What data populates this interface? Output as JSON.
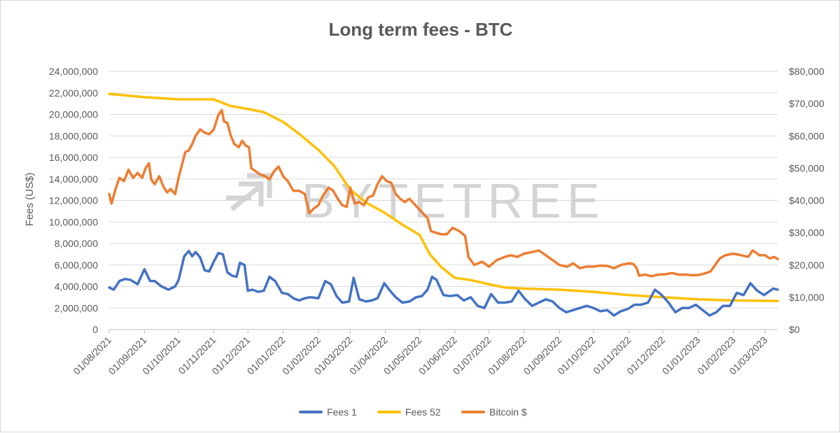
{
  "watermark": "BYTETREE",
  "chart_data": {
    "type": "line",
    "title": "Long term fees - BTC",
    "ylabel": "Fees (US$)",
    "y2label": "",
    "ylim": [
      0,
      24000000
    ],
    "y2lim": [
      0,
      80000
    ],
    "yticks": [
      "0",
      "2,000,000",
      "4,000,000",
      "6,000,000",
      "8,000,000",
      "10,000,000",
      "12,000,000",
      "14,000,000",
      "16,000,000",
      "18,000,000",
      "20,000,000",
      "22,000,000",
      "24,000,000"
    ],
    "y2ticks": [
      "$0",
      "$10,000",
      "$20,000",
      "$30,000",
      "$40,000",
      "$50,000",
      "$60,000",
      "$70,000",
      "$80,000"
    ],
    "xticks": [
      "01/08/2021",
      "01/09/2021",
      "01/10/2021",
      "01/11/2021",
      "01/12/2021",
      "01/01/2022",
      "01/02/2022",
      "01/03/2022",
      "01/04/2022",
      "01/05/2022",
      "01/06/2022",
      "01/07/2022",
      "01/08/2022",
      "01/09/2022",
      "01/10/2022",
      "01/11/2022",
      "01/12/2022",
      "01/01/2023",
      "01/02/2023",
      "01/03/2023"
    ],
    "x_start": "2021-08-01",
    "x_end": "2023-03-12",
    "grid": true,
    "legend_position": "bottom",
    "series": [
      {
        "name": "Fees 1",
        "axis": "left",
        "color": "#4472C4",
        "x": [
          "2021-08-01",
          "2021-08-05",
          "2021-08-10",
          "2021-08-15",
          "2021-08-20",
          "2021-08-26",
          "2021-09-01",
          "2021-09-06",
          "2021-09-10",
          "2021-09-16",
          "2021-09-22",
          "2021-09-28",
          "2021-10-01",
          "2021-10-06",
          "2021-10-10",
          "2021-10-13",
          "2021-10-16",
          "2021-10-20",
          "2021-10-24",
          "2021-10-28",
          "2021-11-01",
          "2021-11-05",
          "2021-11-09",
          "2021-11-13",
          "2021-11-17",
          "2021-11-21",
          "2021-11-24",
          "2021-11-28",
          "2021-12-01",
          "2021-12-05",
          "2021-12-10",
          "2021-12-15",
          "2021-12-20",
          "2021-12-25",
          "2021-12-31",
          "2022-01-05",
          "2022-01-10",
          "2022-01-15",
          "2022-01-20",
          "2022-01-25",
          "2022-02-01",
          "2022-02-07",
          "2022-02-12",
          "2022-02-17",
          "2022-02-22",
          "2022-02-28",
          "2022-03-04",
          "2022-03-09",
          "2022-03-15",
          "2022-03-20",
          "2022-03-25",
          "2022-03-31",
          "2022-04-05",
          "2022-04-10",
          "2022-04-16",
          "2022-04-22",
          "2022-04-28",
          "2022-05-03",
          "2022-05-08",
          "2022-05-12",
          "2022-05-16",
          "2022-05-22",
          "2022-05-28",
          "2022-06-03",
          "2022-06-09",
          "2022-06-15",
          "2022-06-21",
          "2022-06-27",
          "2022-07-03",
          "2022-07-09",
          "2022-07-15",
          "2022-07-21",
          "2022-07-27",
          "2022-08-02",
          "2022-08-08",
          "2022-08-14",
          "2022-08-20",
          "2022-08-26",
          "2022-09-01",
          "2022-09-07",
          "2022-09-13",
          "2022-09-19",
          "2022-09-25",
          "2022-10-01",
          "2022-10-07",
          "2022-10-13",
          "2022-10-19",
          "2022-10-25",
          "2022-10-31",
          "2022-11-06",
          "2022-11-12",
          "2022-11-18",
          "2022-11-24",
          "2022-11-30",
          "2022-12-06",
          "2022-12-12",
          "2022-12-18",
          "2022-12-24",
          "2022-12-30",
          "2023-01-05",
          "2023-01-11",
          "2023-01-17",
          "2023-01-23",
          "2023-01-29",
          "2023-02-04",
          "2023-02-10",
          "2023-02-16",
          "2023-02-22",
          "2023-02-28",
          "2023-03-04",
          "2023-03-08",
          "2023-03-12"
        ],
        "values": [
          3900000,
          3700000,
          4500000,
          4700000,
          4600000,
          4200000,
          5600000,
          4500000,
          4500000,
          4000000,
          3700000,
          4000000,
          4600000,
          6800000,
          7300000,
          6800000,
          7200000,
          6700000,
          5500000,
          5400000,
          6300000,
          7100000,
          7000000,
          5300000,
          5000000,
          4900000,
          6200000,
          6000000,
          3600000,
          3700000,
          3500000,
          3600000,
          4900000,
          4500000,
          3400000,
          3300000,
          2900000,
          2700000,
          2900000,
          3000000,
          2900000,
          4500000,
          4200000,
          3100000,
          2500000,
          2600000,
          4800000,
          2800000,
          2600000,
          2700000,
          2900000,
          4300000,
          3600000,
          3000000,
          2500000,
          2600000,
          3000000,
          3100000,
          3700000,
          4900000,
          4600000,
          3200000,
          3100000,
          3200000,
          2700000,
          3000000,
          2200000,
          2000000,
          3300000,
          2500000,
          2500000,
          2600000,
          3600000,
          2800000,
          2200000,
          2500000,
          2800000,
          2600000,
          2000000,
          1600000,
          1800000,
          2000000,
          2200000,
          2000000,
          1700000,
          1800000,
          1300000,
          1700000,
          1900000,
          2300000,
          2300000,
          2500000,
          3700000,
          3200000,
          2500000,
          1600000,
          2000000,
          2000000,
          2300000,
          1800000,
          1300000,
          1600000,
          2200000,
          2200000,
          3400000,
          3200000,
          4300000,
          3600000,
          3200000,
          3500000,
          3800000,
          3700000
        ]
      },
      {
        "name": "Fees 52",
        "axis": "left",
        "color": "#FFC000",
        "x": [
          "2021-08-01",
          "2021-09-01",
          "2021-10-01",
          "2021-11-01",
          "2021-11-15",
          "2021-12-01",
          "2021-12-15",
          "2022-01-01",
          "2022-01-15",
          "2022-02-01",
          "2022-02-15",
          "2022-03-01",
          "2022-03-15",
          "2022-04-01",
          "2022-04-15",
          "2022-05-01",
          "2022-05-10",
          "2022-05-20",
          "2022-06-01",
          "2022-06-15",
          "2022-07-01",
          "2022-07-15",
          "2022-08-01",
          "2022-09-01",
          "2022-10-01",
          "2022-11-01",
          "2022-12-01",
          "2023-01-01",
          "2023-02-01",
          "2023-03-12"
        ],
        "values": [
          21900000,
          21600000,
          21400000,
          21400000,
          20800000,
          20500000,
          20200000,
          19300000,
          18200000,
          16700000,
          15200000,
          13000000,
          11800000,
          10800000,
          9800000,
          8800000,
          7000000,
          5800000,
          4800000,
          4600000,
          4200000,
          3900000,
          3800000,
          3700000,
          3500000,
          3200000,
          3000000,
          2800000,
          2700000,
          2650000
        ]
      },
      {
        "name": "Bitcoin $",
        "axis": "right",
        "color": "#ED7D31",
        "x": [
          "2021-08-01",
          "2021-08-03",
          "2021-08-07",
          "2021-08-10",
          "2021-08-14",
          "2021-08-18",
          "2021-08-22",
          "2021-08-26",
          "2021-08-30",
          "2021-09-02",
          "2021-09-05",
          "2021-09-07",
          "2021-09-10",
          "2021-09-14",
          "2021-09-18",
          "2021-09-21",
          "2021-09-24",
          "2021-09-28",
          "2021-10-01",
          "2021-10-04",
          "2021-10-07",
          "2021-10-10",
          "2021-10-13",
          "2021-10-16",
          "2021-10-20",
          "2021-10-24",
          "2021-10-28",
          "2021-11-01",
          "2021-11-05",
          "2021-11-08",
          "2021-11-10",
          "2021-11-13",
          "2021-11-16",
          "2021-11-19",
          "2021-11-23",
          "2021-11-26",
          "2021-11-29",
          "2021-12-02",
          "2021-12-04",
          "2021-12-08",
          "2021-12-12",
          "2021-12-16",
          "2021-12-20",
          "2021-12-24",
          "2021-12-28",
          "2022-01-01",
          "2022-01-05",
          "2022-01-10",
          "2022-01-15",
          "2022-01-20",
          "2022-01-24",
          "2022-01-28",
          "2022-02-01",
          "2022-02-05",
          "2022-02-10",
          "2022-02-14",
          "2022-02-18",
          "2022-02-22",
          "2022-02-26",
          "2022-03-01",
          "2022-03-05",
          "2022-03-09",
          "2022-03-13",
          "2022-03-17",
          "2022-03-21",
          "2022-03-25",
          "2022-03-29",
          "2022-04-02",
          "2022-04-06",
          "2022-04-10",
          "2022-04-14",
          "2022-04-18",
          "2022-04-22",
          "2022-04-26",
          "2022-04-30",
          "2022-05-04",
          "2022-05-08",
          "2022-05-11",
          "2022-05-15",
          "2022-05-20",
          "2022-05-25",
          "2022-05-30",
          "2022-06-05",
          "2022-06-10",
          "2022-06-13",
          "2022-06-18",
          "2022-06-25",
          "2022-07-01",
          "2022-07-08",
          "2022-07-15",
          "2022-07-20",
          "2022-07-26",
          "2022-08-01",
          "2022-08-08",
          "2022-08-14",
          "2022-08-20",
          "2022-08-26",
          "2022-09-01",
          "2022-09-08",
          "2022-09-13",
          "2022-09-19",
          "2022-09-25",
          "2022-10-01",
          "2022-10-07",
          "2022-10-13",
          "2022-10-19",
          "2022-10-25",
          "2022-11-01",
          "2022-11-05",
          "2022-11-08",
          "2022-11-10",
          "2022-11-15",
          "2022-11-21",
          "2022-11-27",
          "2022-12-03",
          "2022-12-09",
          "2022-12-15",
          "2022-12-21",
          "2022-12-27",
          "2023-01-02",
          "2023-01-08",
          "2023-01-12",
          "2023-01-15",
          "2023-01-20",
          "2023-01-25",
          "2023-02-01",
          "2023-02-08",
          "2023-02-14",
          "2023-02-18",
          "2023-02-24",
          "2023-03-01",
          "2023-03-05",
          "2023-03-09",
          "2023-03-12"
        ],
        "values": [
          42000,
          39000,
          44000,
          47000,
          46000,
          49500,
          47000,
          48500,
          47000,
          50000,
          51500,
          46500,
          45000,
          47500,
          44000,
          42500,
          43500,
          42000,
          47000,
          51000,
          55000,
          55500,
          57500,
          60000,
          62000,
          61000,
          60500,
          62000,
          66500,
          68000,
          64500,
          64000,
          60000,
          57500,
          56500,
          58500,
          57000,
          56500,
          50000,
          49000,
          48000,
          47500,
          46500,
          49000,
          50500,
          47500,
          46000,
          43000,
          43000,
          42000,
          36000,
          37500,
          38500,
          41500,
          44000,
          43000,
          40500,
          38500,
          38000,
          44000,
          39000,
          39500,
          38500,
          41000,
          41500,
          45000,
          47500,
          46000,
          45500,
          42000,
          40500,
          39500,
          40500,
          39000,
          37500,
          36000,
          34500,
          30500,
          30000,
          29500,
          29500,
          31500,
          30500,
          29000,
          22500,
          20000,
          21000,
          19500,
          21500,
          22500,
          23000,
          22500,
          23500,
          24000,
          24500,
          23000,
          21500,
          20000,
          19500,
          20500,
          19000,
          19500,
          19500,
          19800,
          19700,
          19000,
          20000,
          20500,
          20300,
          19000,
          16700,
          17000,
          16500,
          17000,
          17100,
          17500,
          17000,
          17000,
          16800,
          16900,
          17500,
          18000,
          19500,
          22000,
          23000,
          23500,
          23000,
          22500,
          24500,
          23000,
          23000,
          22000,
          22500,
          21800
        ]
      }
    ]
  }
}
